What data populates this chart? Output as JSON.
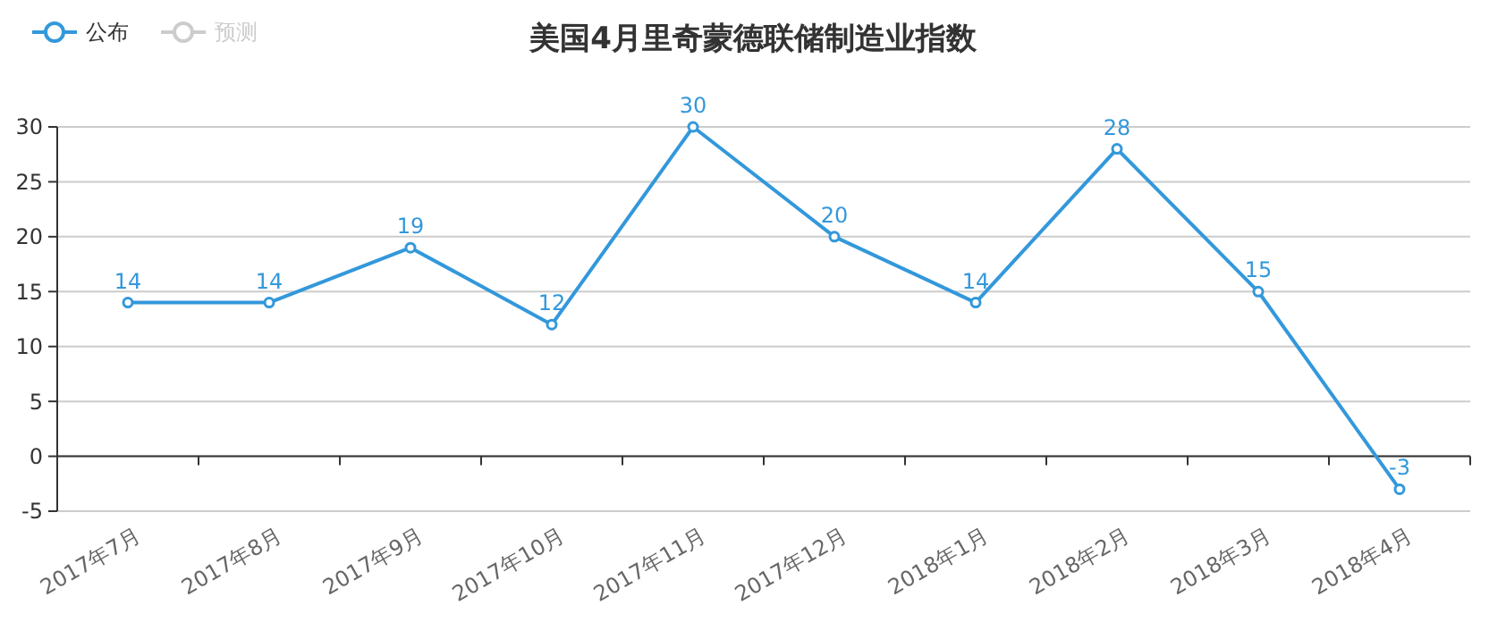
{
  "chart_data": {
    "type": "line",
    "title": "美国4月里奇蒙德联储制造业指数",
    "categories": [
      "2017年7月",
      "2017年8月",
      "2017年9月",
      "2017年10月",
      "2017年11月",
      "2017年12月",
      "2018年1月",
      "2018年2月",
      "2018年3月",
      "2018年4月"
    ],
    "series": [
      {
        "name": "公布",
        "color": "#3398db",
        "values": [
          14,
          14,
          19,
          12,
          30,
          20,
          14,
          28,
          15,
          -3
        ]
      },
      {
        "name": "预测",
        "color": "#cccccc",
        "values": [
          null,
          null,
          null,
          null,
          null,
          null,
          null,
          null,
          null,
          null
        ]
      }
    ],
    "ylim": [
      -5,
      30
    ],
    "yticks": [
      -5,
      0,
      5,
      10,
      15,
      20,
      25,
      30
    ],
    "grid": "y",
    "legend": "top left",
    "marker": "circle",
    "line_style": "solid",
    "data_labels": true
  }
}
